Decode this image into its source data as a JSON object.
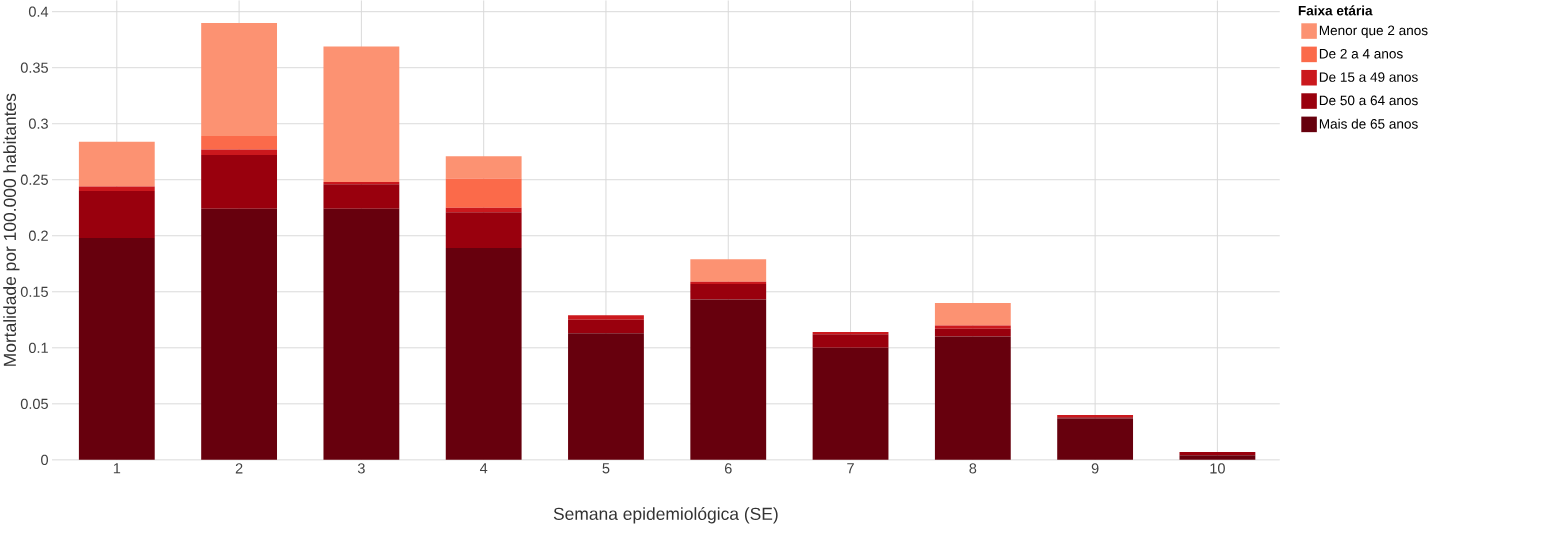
{
  "chart_data": {
    "type": "bar",
    "stacked": true,
    "xlabel": "Semana epidemiológica (SE)",
    "ylabel": "Mortalidade por 100.000 habitantes",
    "legend_title": "Faixa etária",
    "categories": [
      "1",
      "2",
      "3",
      "4",
      "5",
      "6",
      "7",
      "8",
      "9",
      "10"
    ],
    "series": [
      {
        "name": "Mais de 65 anos",
        "color": "#67000d",
        "values": [
          0.198,
          0.224,
          0.224,
          0.189,
          0.113,
          0.143,
          0.1,
          0.11,
          0.037,
          0.004
        ]
      },
      {
        "name": "De 50 a 64 anos",
        "color": "#99000d",
        "values": [
          0.042,
          0.048,
          0.022,
          0.032,
          0.012,
          0.014,
          0.012,
          0.007,
          0.001,
          0.003
        ]
      },
      {
        "name": "De 15 a 49 anos",
        "color": "#cb181d",
        "values": [
          0.004,
          0.005,
          0.002,
          0.004,
          0.004,
          0.002,
          0.002,
          0.003,
          0.002,
          0
        ]
      },
      {
        "name": "De 2 a 4 anos",
        "color": "#fb6a4a",
        "values": [
          0,
          0.012,
          0,
          0.026,
          0,
          0,
          0,
          0,
          0,
          0
        ]
      },
      {
        "name": "Menor que 2 anos",
        "color": "#fc9272",
        "values": [
          0.04,
          0.101,
          0.121,
          0.02,
          0,
          0.02,
          0,
          0.02,
          0,
          0
        ]
      }
    ],
    "ylim": [
      0,
      0.41
    ],
    "yticks": [
      0,
      0.05,
      0.1,
      0.15,
      0.2,
      0.25,
      0.3,
      0.35,
      0.4
    ],
    "grid": true,
    "legend": "right"
  }
}
